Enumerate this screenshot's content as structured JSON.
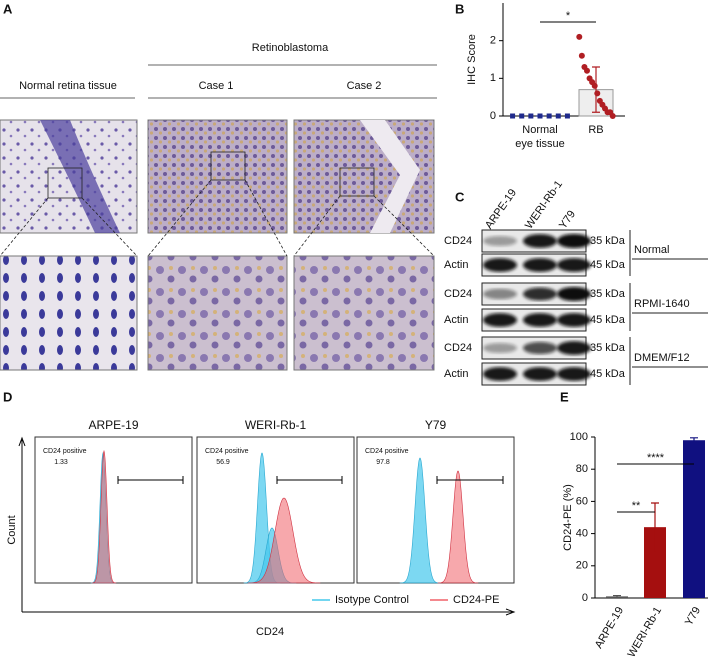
{
  "panels": {
    "labels": [
      "A",
      "B",
      "C",
      "D",
      "E"
    ]
  },
  "ihc": {
    "group_header": "Retinoblastoma",
    "columns": [
      "Normal retina tissue",
      "Case 1",
      "Case 2"
    ]
  },
  "chart_data": [
    {
      "type": "bar",
      "y_label": "IHC Score",
      "categories": [
        "Normal\neye tissue",
        "RB"
      ],
      "values": [
        0,
        0.7
      ],
      "errors": [
        0,
        0.6
      ],
      "colors": [
        "#1f2a8c",
        "#b01e23"
      ],
      "points": [
        [
          0,
          0,
          0,
          0,
          0,
          0,
          0
        ],
        [
          2.1,
          1.6,
          1.3,
          1.2,
          1.0,
          0.9,
          0.8,
          0.6,
          0.4,
          0.3,
          0.2,
          0.1,
          0.1,
          0
        ]
      ],
      "ylim": [
        0,
        3
      ],
      "yticks": [
        0,
        1,
        2
      ],
      "significance": [
        {
          "pair": [
            0,
            1
          ],
          "label": "*"
        }
      ]
    },
    {
      "type": "bar",
      "y_label": "CD24-PE (%)",
      "categories": [
        "ARPE-19",
        "WERI-Rb-1",
        "Y79"
      ],
      "values": [
        1,
        44,
        98
      ],
      "errors": [
        0.5,
        15,
        1.5
      ],
      "colors": [
        "#555555",
        "#a50f0f",
        "#101080"
      ],
      "ylim": [
        0,
        100
      ],
      "yticks": [
        0,
        20,
        40,
        60,
        80,
        100
      ],
      "significance": [
        {
          "pair": [
            0,
            1
          ],
          "label": "**"
        },
        {
          "pair": [
            0,
            2
          ],
          "label": "****"
        }
      ]
    }
  ],
  "blot": {
    "lanes": [
      "ARPE-19",
      "WERI-Rb-1",
      "Y79"
    ],
    "groups": [
      {
        "condition": "Normal",
        "rows": [
          {
            "label": "CD24",
            "size": "35 kDa"
          },
          {
            "label": "Actin",
            "size": "45 kDa"
          }
        ]
      },
      {
        "condition": "RPMI-1640",
        "rows": [
          {
            "label": "CD24",
            "size": "35 kDa"
          },
          {
            "label": "Actin",
            "size": "45 kDa"
          }
        ]
      },
      {
        "condition": "DMEM/F12",
        "rows": [
          {
            "label": "CD24",
            "size": "35 kDa"
          },
          {
            "label": "Actin",
            "size": "45 kDa"
          }
        ]
      }
    ]
  },
  "flow": {
    "samples": [
      {
        "name": "ARPE-19",
        "gate_label": "CD24 positive",
        "percent": 1.33
      },
      {
        "name": "WERI-Rb-1",
        "gate_label": "CD24 positive",
        "percent": 56.9
      },
      {
        "name": "Y79",
        "gate_label": "CD24 positive",
        "percent": 97.8
      }
    ],
    "y_label": "Count",
    "x_label": "CD24",
    "legend": [
      {
        "name": "Isotype Control",
        "color": "#45c8ec"
      },
      {
        "name": "CD24-PE",
        "color": "#f06068"
      }
    ]
  }
}
